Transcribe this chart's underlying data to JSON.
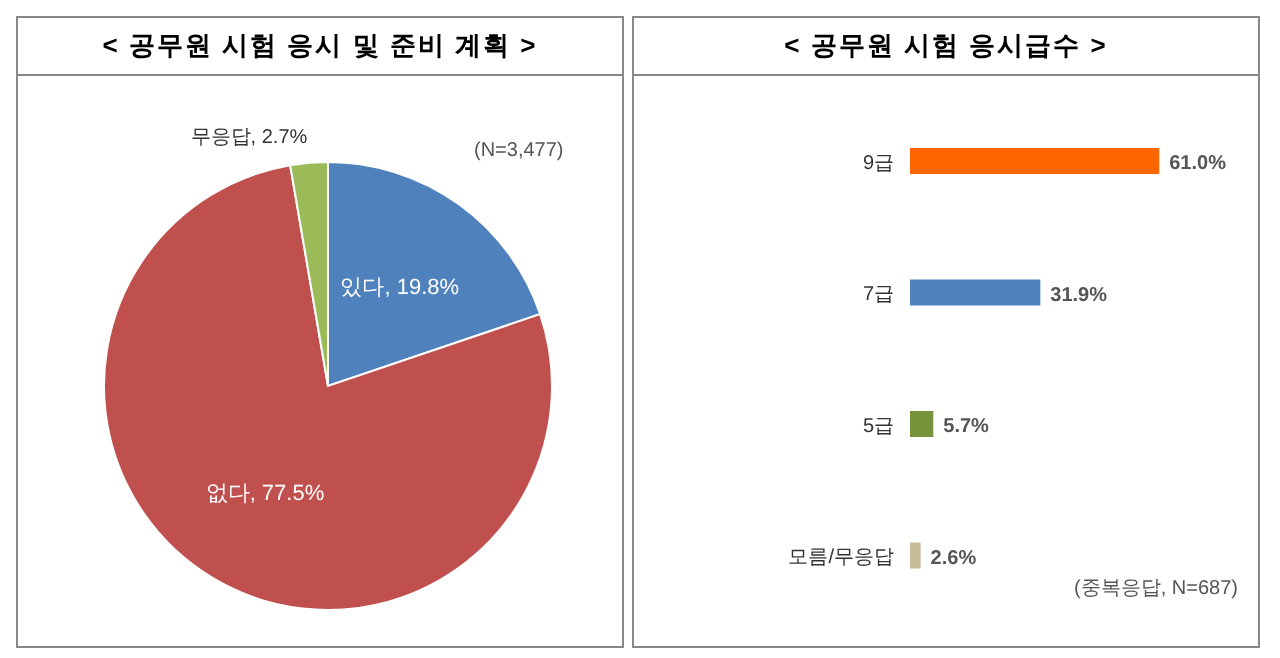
{
  "chart_data": [
    {
      "type": "pie",
      "title": "< 공무원 시험 응시 및 준비 계획 >",
      "categories": [
        "있다",
        "없다",
        "무응답"
      ],
      "values": [
        19.8,
        77.5,
        2.7
      ],
      "colors": [
        "#4f81bd",
        "#c0504d",
        "#9bbb59"
      ],
      "value_labels": [
        "19.8%",
        "77.5%",
        "2.7%"
      ],
      "annotations": [
        "(N=3,477)"
      ]
    },
    {
      "type": "bar",
      "orientation": "horizontal",
      "title": "< 공무원 시험 응시급수 >",
      "categories": [
        "9급",
        "7급",
        "5급",
        "모름/무응답"
      ],
      "values": [
        61.0,
        31.9,
        5.7,
        2.6
      ],
      "colors": [
        "#ff6600",
        "#4f81bd",
        "#77933c",
        "#c4bd97"
      ],
      "value_labels": [
        "61.0%",
        "31.9%",
        "5.7%",
        "2.6%"
      ],
      "annotations": [
        "(중복응답, N=687)"
      ]
    }
  ]
}
